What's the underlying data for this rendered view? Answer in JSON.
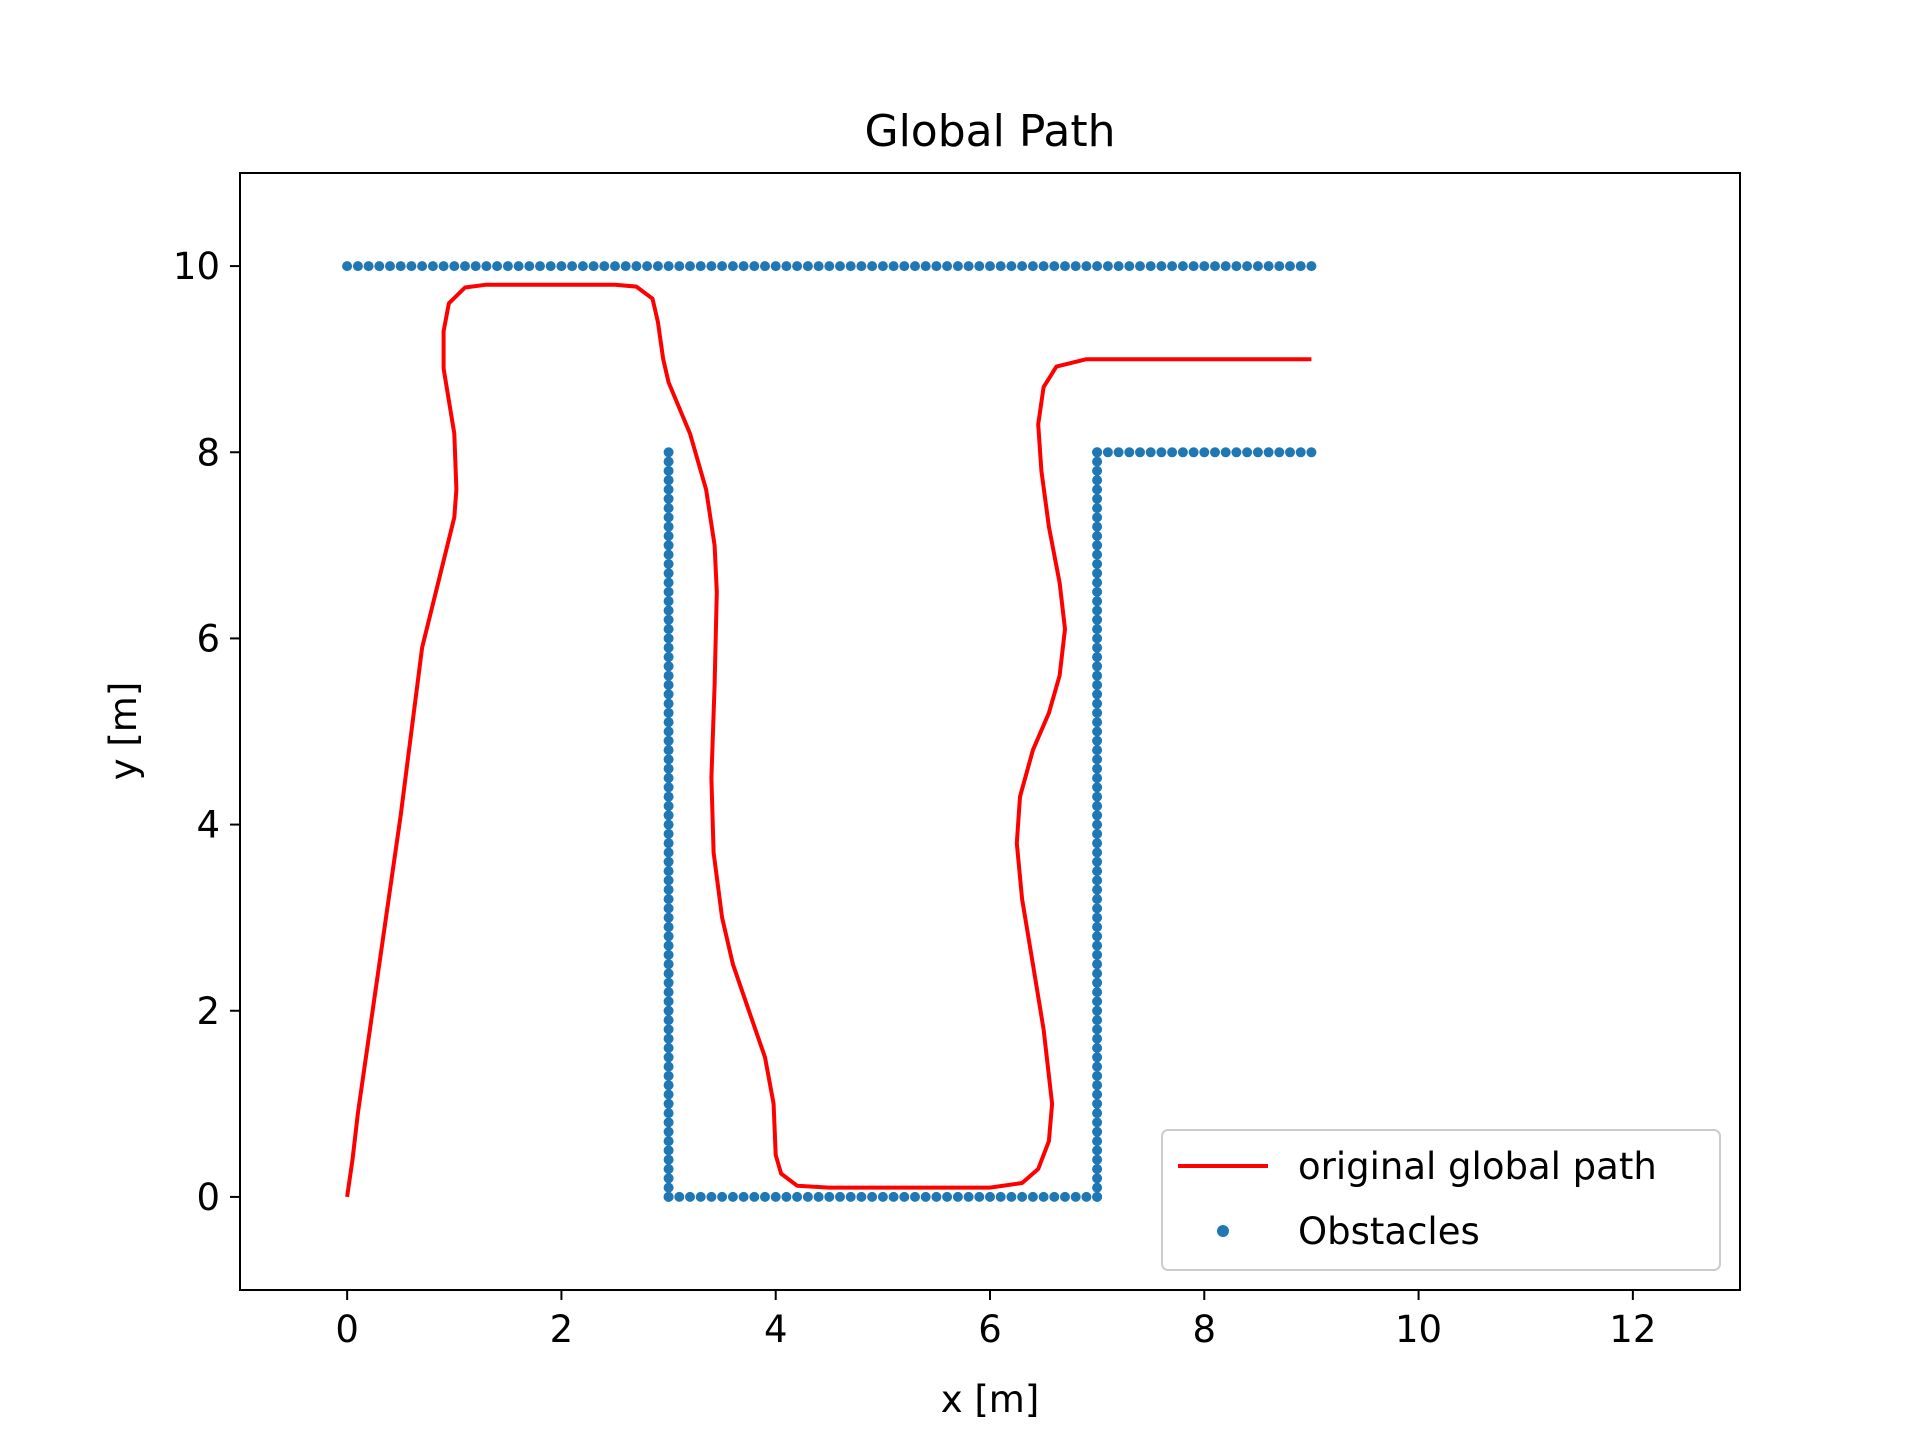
{
  "chart_data": {
    "type": "line",
    "title": "Global Path",
    "xlabel": "x [m]",
    "ylabel": "y [m]",
    "xlim": [
      -1,
      13
    ],
    "ylim": [
      -1,
      11
    ],
    "xticks": [
      0,
      2,
      4,
      6,
      8,
      10,
      12
    ],
    "yticks": [
      0,
      2,
      4,
      6,
      8,
      10
    ],
    "xtick_labels": [
      "0",
      "2",
      "4",
      "6",
      "8",
      "10",
      "12"
    ],
    "ytick_labels": [
      "0",
      "2",
      "4",
      "6",
      "8",
      "10"
    ],
    "grid": false,
    "legend_position": "lower-right",
    "series": [
      {
        "name": "original global path",
        "kind": "line",
        "color": "#ff0000",
        "points": [
          [
            0,
            0
          ],
          [
            0.05,
            0.4
          ],
          [
            0.1,
            0.9
          ],
          [
            0.2,
            1.7
          ],
          [
            0.3,
            2.5
          ],
          [
            0.4,
            3.3
          ],
          [
            0.5,
            4.1
          ],
          [
            0.6,
            5.0
          ],
          [
            0.7,
            5.9
          ],
          [
            0.85,
            6.6
          ],
          [
            1.0,
            7.3
          ],
          [
            1.02,
            7.6
          ],
          [
            1.0,
            8.2
          ],
          [
            0.9,
            8.9
          ],
          [
            0.9,
            9.3
          ],
          [
            0.95,
            9.6
          ],
          [
            1.1,
            9.77
          ],
          [
            1.3,
            9.8
          ],
          [
            2.5,
            9.8
          ],
          [
            2.7,
            9.78
          ],
          [
            2.85,
            9.65
          ],
          [
            2.9,
            9.4
          ],
          [
            2.95,
            9.0
          ],
          [
            3.0,
            8.75
          ],
          [
            3.2,
            8.2
          ],
          [
            3.35,
            7.6
          ],
          [
            3.43,
            7.0
          ],
          [
            3.45,
            6.5
          ],
          [
            3.43,
            5.5
          ],
          [
            3.4,
            4.5
          ],
          [
            3.42,
            3.7
          ],
          [
            3.5,
            3.0
          ],
          [
            3.6,
            2.5
          ],
          [
            3.75,
            2.0
          ],
          [
            3.9,
            1.5
          ],
          [
            3.98,
            1.0
          ],
          [
            4.0,
            0.45
          ],
          [
            4.05,
            0.25
          ],
          [
            4.2,
            0.12
          ],
          [
            4.5,
            0.1
          ],
          [
            6.0,
            0.1
          ],
          [
            6.3,
            0.15
          ],
          [
            6.45,
            0.3
          ],
          [
            6.55,
            0.6
          ],
          [
            6.58,
            1.0
          ],
          [
            6.5,
            1.8
          ],
          [
            6.4,
            2.5
          ],
          [
            6.3,
            3.2
          ],
          [
            6.25,
            3.8
          ],
          [
            6.28,
            4.3
          ],
          [
            6.4,
            4.8
          ],
          [
            6.55,
            5.2
          ],
          [
            6.65,
            5.6
          ],
          [
            6.7,
            6.1
          ],
          [
            6.65,
            6.6
          ],
          [
            6.55,
            7.2
          ],
          [
            6.48,
            7.8
          ],
          [
            6.45,
            8.3
          ],
          [
            6.5,
            8.7
          ],
          [
            6.62,
            8.92
          ],
          [
            6.9,
            9.0
          ],
          [
            9.0,
            9.0
          ]
        ]
      },
      {
        "name": "Obstacles",
        "kind": "scatter",
        "color": "#1f77b4",
        "segments": [
          {
            "from": [
              0,
              10
            ],
            "to": [
              9,
              10
            ],
            "step": 0.1
          },
          {
            "from": [
              3,
              0
            ],
            "to": [
              3,
              8
            ],
            "step": 0.1
          },
          {
            "from": [
              3,
              0
            ],
            "to": [
              7,
              0
            ],
            "step": 0.1
          },
          {
            "from": [
              7,
              0
            ],
            "to": [
              7,
              8
            ],
            "step": 0.1
          },
          {
            "from": [
              7,
              8
            ],
            "to": [
              9,
              8
            ],
            "step": 0.1
          }
        ]
      }
    ]
  }
}
